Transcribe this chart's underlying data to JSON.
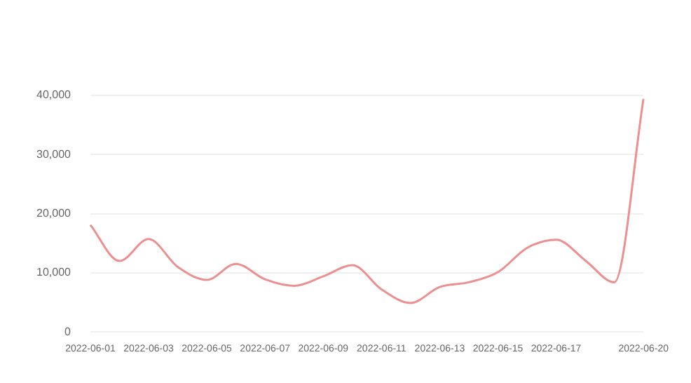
{
  "chart_data": {
    "type": "line",
    "categories": [
      "2022-06-01",
      null,
      "2022-06-03",
      null,
      "2022-06-05",
      null,
      "2022-06-07",
      null,
      "2022-06-09",
      null,
      "2022-06-11",
      null,
      "2022-06-13",
      null,
      "2022-06-15",
      null,
      "2022-06-17",
      null,
      null,
      "2022-06-20"
    ],
    "series": [
      {
        "color": "#ec8f8f",
        "values": [
          18100,
          12000,
          15700,
          11000,
          8800,
          11500,
          8900,
          7800,
          9400,
          11300,
          7200,
          4900,
          7600,
          8400,
          10100,
          14200,
          15600,
          12100,
          8400,
          39400
        ]
      }
    ],
    "ylim": [
      0,
      40000
    ],
    "yticks": [
      0,
      {
        "value": 10000,
        "label": "10,000"
      },
      {
        "value": 20000,
        "label": "20,000"
      },
      {
        "value": 30000,
        "label": "30,000"
      },
      {
        "value": 40000,
        "label": "40,000"
      }
    ],
    "grid": "y",
    "marker": "none",
    "line_style": "solid"
  }
}
